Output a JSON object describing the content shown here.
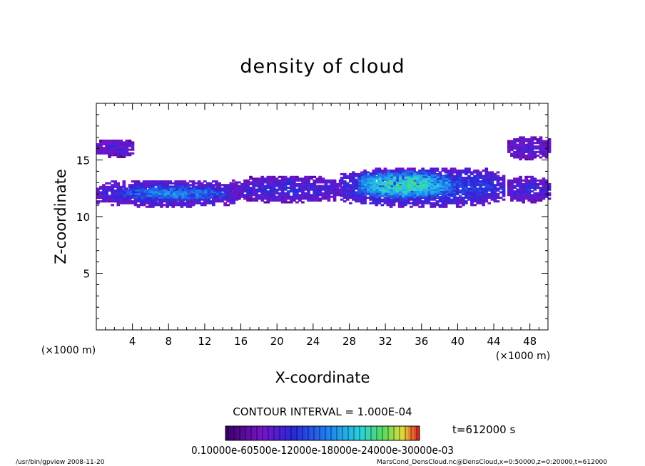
{
  "chart_data": {
    "type": "heatmap",
    "title": "density of cloud",
    "xlabel": "X-coordinate",
    "ylabel": "Z-coordinate",
    "x_unit_label": "(×1000 m)",
    "y_unit_label": "(×1000 m)",
    "xlim": [
      0,
      50
    ],
    "ylim": [
      0,
      20
    ],
    "x_ticks": [
      "4",
      "8",
      "12",
      "16",
      "20",
      "24",
      "28",
      "32",
      "36",
      "40",
      "44",
      "48"
    ],
    "y_ticks": [
      "5",
      "10",
      "15"
    ],
    "contour_interval_text": "CONTOUR INTERVAL = 1.000E-04",
    "time_label": "t=612000 s",
    "colorbar_labels": "0.10000e-60500e-12000e-18000e-24000e-30000e-03",
    "colorbar_range": [
      0.0001,
      0.0007
    ],
    "regions": [
      {
        "name": "upper left band",
        "x": [
          0,
          4
        ],
        "z": [
          15.2,
          16.8
        ],
        "level": 0.25
      },
      {
        "name": "left layer",
        "x": [
          0,
          15.5
        ],
        "z": [
          10.8,
          13.2
        ],
        "level": 0.35
      },
      {
        "name": "left core",
        "x": [
          3,
          14
        ],
        "z": [
          11.3,
          12.7
        ],
        "level": 0.5
      },
      {
        "name": "middle patches",
        "x": [
          15,
          27
        ],
        "z": [
          11.2,
          13.5
        ],
        "level": 0.3
      },
      {
        "name": "right layer",
        "x": [
          27,
          45
        ],
        "z": [
          10.8,
          14.3
        ],
        "level": 0.4
      },
      {
        "name": "right core",
        "x": [
          29,
          39
        ],
        "z": [
          11.5,
          14
        ],
        "level": 0.7
      },
      {
        "name": "upper right band",
        "x": [
          45.5,
          50
        ],
        "z": [
          15,
          17
        ],
        "level": 0.25
      },
      {
        "name": "lower right patch",
        "x": [
          45.5,
          50
        ],
        "z": [
          11.2,
          13.5
        ],
        "level": 0.3
      }
    ]
  },
  "footer": {
    "left": "/usr/bin/gpview   2008-11-20",
    "right": "MarsCond_DensCloud.nc@DensCloud,x=0:50000,z=0:20000,t=612000"
  }
}
